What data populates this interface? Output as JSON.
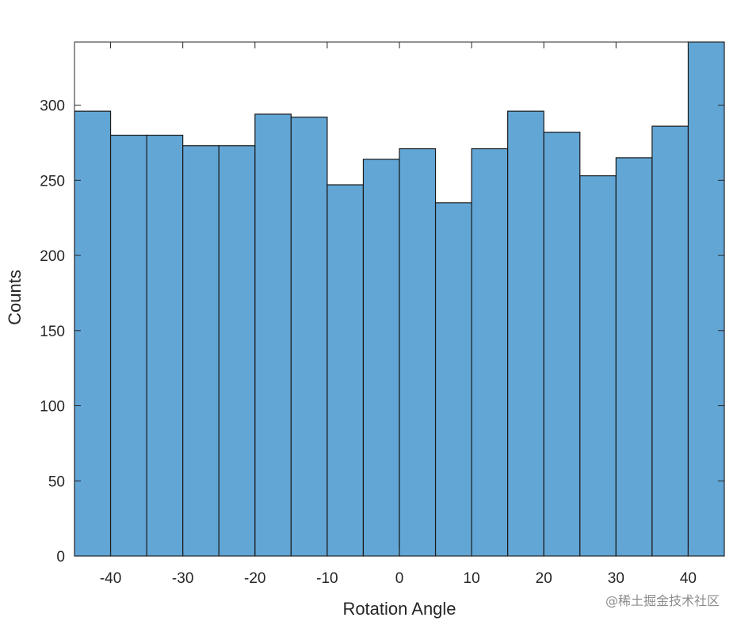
{
  "chart_data": {
    "type": "bar",
    "bin_edges": [
      -45,
      -40,
      -35,
      -30,
      -25,
      -20,
      -15,
      -10,
      -5,
      0,
      5,
      10,
      15,
      20,
      25,
      30,
      35,
      40,
      45
    ],
    "values": [
      296,
      280,
      280,
      273,
      273,
      294,
      292,
      247,
      264,
      271,
      235,
      271,
      296,
      282,
      253,
      265,
      286,
      342
    ],
    "xlabel": "Rotation Angle",
    "ylabel": "Counts",
    "xlim": [
      -45,
      45
    ],
    "ylim": [
      0,
      342
    ],
    "xticks": [
      -40,
      -30,
      -20,
      -10,
      0,
      10,
      20,
      30,
      40
    ],
    "yticks": [
      0,
      50,
      100,
      150,
      200,
      250,
      300
    ],
    "bar_color": "#62a6d6",
    "edge_color": "#1a1a1a",
    "grid": false,
    "legend": "none"
  },
  "watermark": "@稀土掘金技术社区"
}
